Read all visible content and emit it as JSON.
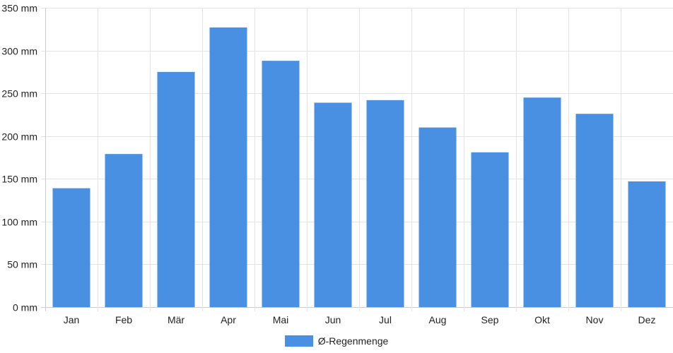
{
  "chart_data": {
    "type": "bar",
    "categories": [
      "Jan",
      "Feb",
      "Mär",
      "Apr",
      "Mai",
      "Jun",
      "Jul",
      "Aug",
      "Sep",
      "Okt",
      "Nov",
      "Dez"
    ],
    "series": [
      {
        "name": "Ø-Regenmenge",
        "values": [
          139,
          179,
          275,
          327,
          288,
          239,
          242,
          210,
          181,
          245,
          226,
          147
        ],
        "color": "#4a90e2"
      }
    ],
    "yticks": [
      "0 mm",
      "50 mm",
      "100 mm",
      "150 mm",
      "200 mm",
      "250 mm",
      "300 mm",
      "350 mm"
    ],
    "ylim": [
      0,
      350
    ],
    "ytick_step": 50,
    "grid": true,
    "legend_position": "bottom-center"
  }
}
